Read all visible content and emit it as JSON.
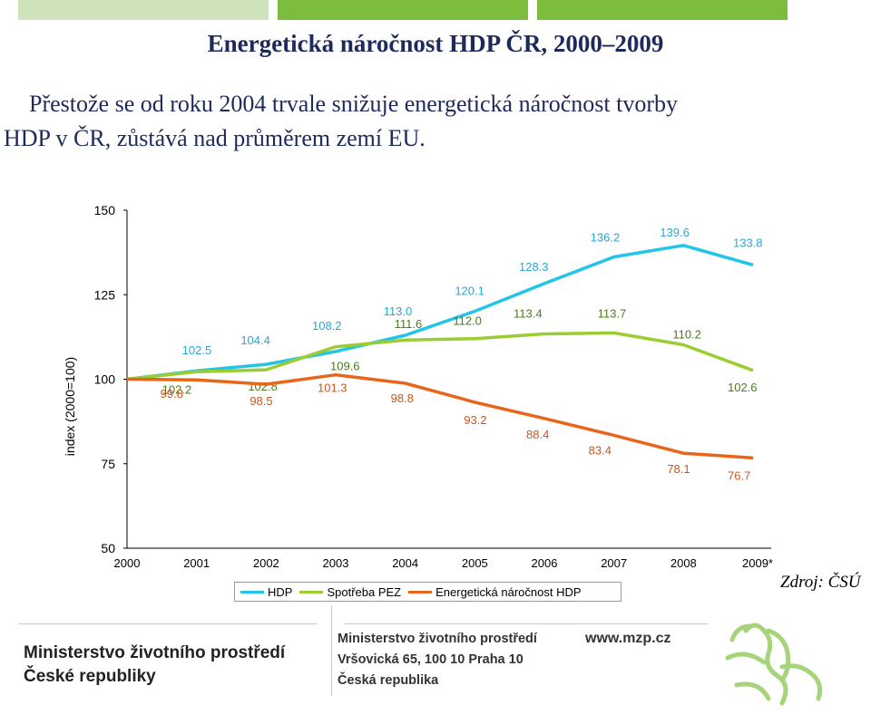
{
  "header": {
    "title": "Energetická náročnost HDP ČR, 2000–2009",
    "subtitle_line1": "Přestože se od roku 2004 trvale snižuje energetická náročnost tvorby",
    "subtitle_line2": "HDP v ČR,  zůstává nad průměrem zemí EU."
  },
  "colors": {
    "hdp": "#22c4e8",
    "pez": "#9acd32",
    "intensity": "#e8651a",
    "bar_light": "#cfe3bb",
    "bar_dark": "#7cbd3e",
    "label_blue": "#2aa7d6",
    "label_green": "#4a7b1c",
    "label_orange": "#c9561a"
  },
  "chart_data": {
    "type": "line",
    "title": "",
    "xlabel": "",
    "ylabel": "index (2000=100)",
    "ylim": [
      50,
      150
    ],
    "yticks": [
      50,
      75,
      100,
      125,
      150
    ],
    "categories": [
      "2000",
      "2001",
      "2002",
      "2003",
      "2004",
      "2005",
      "2006",
      "2007",
      "2008",
      "2009*"
    ],
    "series": [
      {
        "name": "HDP",
        "values": [
          100,
          102.5,
          104.4,
          108.2,
          113.0,
          120.1,
          128.3,
          136.2,
          139.6,
          133.8
        ],
        "labels": [
          "",
          "102.5",
          "104.4",
          "108.2",
          "113.0",
          "120.1",
          "128.3",
          "136.2",
          "139.6",
          "133.8"
        ]
      },
      {
        "name": "Spotřeba PEZ",
        "values": [
          100,
          102.2,
          102.8,
          109.6,
          111.6,
          112.0,
          113.4,
          113.7,
          110.2,
          102.6
        ],
        "labels": [
          "",
          "102.2",
          "102.8",
          "109.6",
          "111.6",
          "112.0",
          "113.4",
          "113.7",
          "110.2",
          "102.6"
        ]
      },
      {
        "name": "Energetická náročnost HDP",
        "values": [
          100,
          99.8,
          98.5,
          101.3,
          98.8,
          93.2,
          88.4,
          83.4,
          78.1,
          76.7
        ],
        "labels": [
          "",
          "99.8",
          "98.5",
          "101.3",
          "98.8",
          "93.2",
          "88.4",
          "83.4",
          "78.1",
          "76.7"
        ]
      }
    ],
    "legend": [
      "HDP",
      "Spotřeba PEZ",
      "Energetická náročnost HDP"
    ],
    "legend_position": "bottom"
  },
  "source": "Zdroj: ČSÚ",
  "footer": {
    "ministry_line1": "Ministerstvo životního prostředí",
    "ministry_line2": "České republiky",
    "address_line1": "Ministerstvo životního prostředí",
    "address_line2": "Vršovická 65, 100 10  Praha 10",
    "address_line3": "Česká republika",
    "web": "www.mzp.cz"
  }
}
